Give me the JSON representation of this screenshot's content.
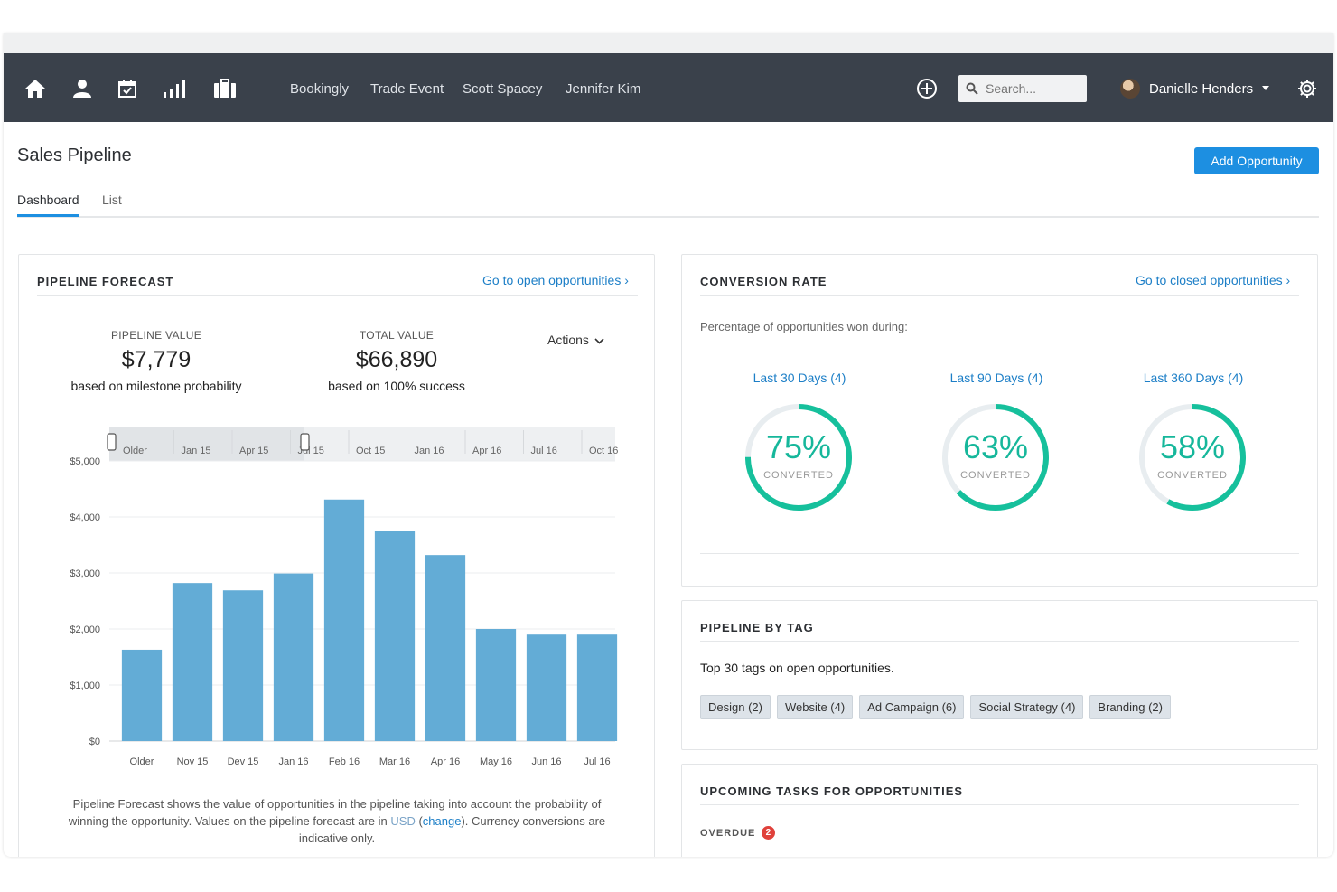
{
  "nav": {
    "icons": [
      "home-icon",
      "user-icon",
      "calendar-icon",
      "bar-chart-icon",
      "briefcase-icon"
    ],
    "links": [
      "Bookingly",
      "Trade Event",
      "Scott Spacey",
      "Jennifer Kim"
    ],
    "search_placeholder": "Search...",
    "user_name": "Danielle Henders"
  },
  "page": {
    "title": "Sales Pipeline",
    "add_button": "Add Opportunity",
    "tabs": [
      {
        "label": "Dashboard",
        "active": true
      },
      {
        "label": "List",
        "active": false
      }
    ]
  },
  "forecast": {
    "title": "PIPELINE FORECAST",
    "link": "Go to open opportunities ›",
    "pipeline_value_label": "PIPELINE VALUE",
    "pipeline_value": "$7,779",
    "pipeline_value_sub": "based on milestone probability",
    "total_value_label": "TOTAL VALUE",
    "total_value": "$66,890",
    "total_value_sub": "based on 100% success",
    "actions": "Actions",
    "range_labels": [
      "Older",
      "Jan 15",
      "Apr 15",
      "Jul 15",
      "Oct 15",
      "Jan 16",
      "Apr 16",
      "Jul 16",
      "Oct 16"
    ],
    "footnote_1": "Pipeline Forecast shows the value of opportunities in the pipeline taking into account the probability of winning the opportunity. Values on the pipeline forecast are in",
    "footnote_usd": "USD",
    "footnote_change": "change",
    "footnote_2": ". Currency conversions are indicative only."
  },
  "chart_data": {
    "type": "bar",
    "categories": [
      "Older",
      "Nov 15",
      "Dev 15",
      "Jan 16",
      "Feb 16",
      "Mar 16",
      "Apr 16",
      "May 16",
      "Jun 16",
      "Jul 16"
    ],
    "values": [
      1630,
      2820,
      2690,
      2990,
      4310,
      3750,
      3320,
      2000,
      1900,
      1900
    ],
    "yticks": [
      "$0",
      "$1,000",
      "$2,000",
      "$3,000",
      "$4,000",
      "$5,000"
    ],
    "ylim": [
      0,
      5000
    ],
    "bar_color": "#63acd6",
    "grid": true
  },
  "conversion": {
    "title": "CONVERSION RATE",
    "link": "Go to closed opportunities ›",
    "subtitle": "Percentage of opportunities won during:",
    "periods": [
      {
        "label": "Last 30 Days (4)",
        "percent": 75,
        "display": "75%",
        "caption": "CONVERTED"
      },
      {
        "label": "Last 90 Days (4)",
        "percent": 63,
        "display": "63%",
        "caption": "CONVERTED"
      },
      {
        "label": "Last 360 Days (4)",
        "percent": 58,
        "display": "58%",
        "caption": "CONVERTED"
      }
    ],
    "ring_color": "#16c09c",
    "track_color": "#e8edf0"
  },
  "tags": {
    "title": "PIPELINE BY TAG",
    "subtitle": "Top 30 tags on open opportunities.",
    "items": [
      "Design (2)",
      "Website (4)",
      "Ad Campaign (6)",
      "Social Strategy (4)",
      "Branding (2)"
    ]
  },
  "tasks": {
    "title": "UPCOMING TASKS FOR OPPORTUNITIES",
    "overdue_label": "OVERDUE",
    "overdue_count": "2"
  }
}
